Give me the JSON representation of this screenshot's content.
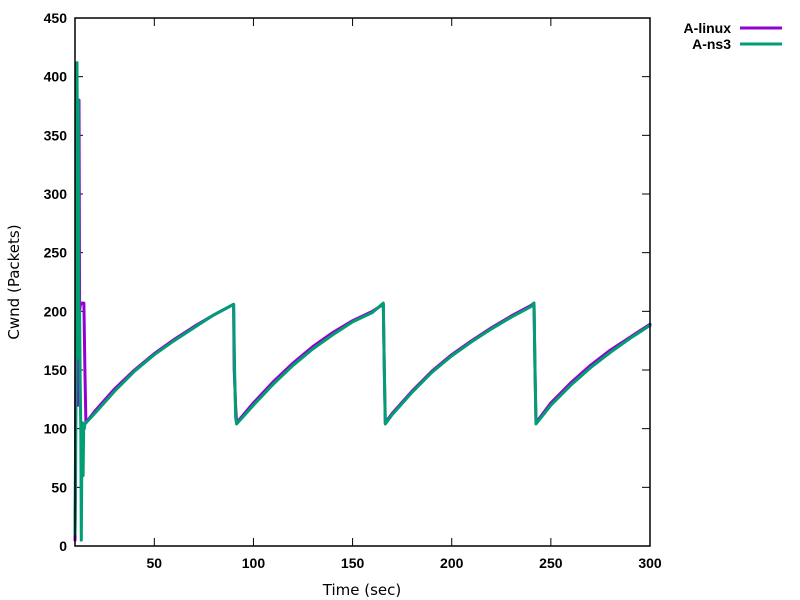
{
  "chart_data": {
    "type": "line",
    "title": "",
    "xlabel": "Time (sec)",
    "ylabel": "Cwnd (Packets)",
    "xlim": [
      10,
      300
    ],
    "ylim": [
      0,
      450
    ],
    "x_ticks": [
      50,
      100,
      150,
      200,
      250,
      300
    ],
    "y_ticks": [
      0,
      50,
      100,
      150,
      200,
      250,
      300,
      350,
      400,
      450
    ],
    "grid": false,
    "legend_position": "top-right, outside plot",
    "series": [
      {
        "name": "A-linux",
        "color": "#9400d3",
        "x": [
          10,
          10.3,
          10.8,
          11.5,
          12,
          12.3,
          12.6,
          13,
          13.3,
          14.5,
          15,
          15.5,
          20,
          30,
          40,
          50,
          60,
          70,
          80,
          90,
          90.3,
          91,
          91.5,
          100,
          110,
          120,
          130,
          140,
          150,
          160,
          165.5,
          166,
          166.5,
          170,
          180,
          190,
          200,
          210,
          220,
          230,
          240,
          241.5,
          242,
          242.5,
          250,
          260,
          270,
          280,
          290,
          300
        ],
        "y": [
          5,
          60,
          400,
          120,
          380,
          200,
          205,
          206,
          207,
          207,
          150,
          105,
          115,
          134,
          150,
          164,
          176,
          187,
          197,
          206,
          150,
          120,
          105,
          122,
          140,
          156,
          170,
          182,
          192,
          200,
          206,
          150,
          105,
          113,
          132,
          149,
          163,
          175,
          186,
          196,
          205,
          207,
          150,
          105,
          122,
          139,
          154,
          167,
          178,
          189
        ]
      },
      {
        "name": "A-ns3",
        "color": "#009e73",
        "x": [
          10,
          10.5,
          11,
          11.3,
          11.6,
          12,
          12.3,
          12.6,
          12.9,
          13.2,
          13.5,
          13.8,
          14.1,
          14.4,
          14.7,
          15,
          20,
          30,
          40,
          50,
          60,
          70,
          80,
          90,
          90.5,
          91,
          91.5,
          100,
          110,
          120,
          130,
          140,
          150,
          160,
          165.5,
          166,
          166.5,
          170,
          180,
          190,
          200,
          210,
          220,
          230,
          240,
          241.5,
          242,
          242.5,
          250,
          260,
          270,
          280,
          290,
          300
        ],
        "y": [
          10,
          150,
          412,
          290,
          380,
          160,
          200,
          140,
          100,
          5,
          80,
          105,
          60,
          103,
          100,
          104,
          113,
          132,
          149,
          163,
          175,
          186,
          197,
          206,
          150,
          110,
          104,
          120,
          138,
          154,
          168,
          180,
          191,
          199,
          207,
          150,
          104,
          112,
          131,
          148,
          162,
          174,
          185,
          195,
          204,
          207,
          150,
          104,
          120,
          137,
          152,
          165,
          177,
          188
        ]
      }
    ]
  }
}
